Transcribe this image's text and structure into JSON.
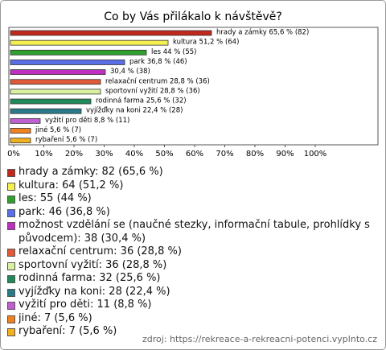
{
  "chart_data": {
    "type": "bar",
    "orientation": "horizontal",
    "title": "Co by Vás přilákalo k návštěvě?",
    "categories": [
      "hrady a zámky",
      "kultura",
      "les",
      "park",
      "možnost vzdělání se (naučné stezky, informační tabule, prohlídky s původcem)",
      "relaxační centrum",
      "sportovní vyžití",
      "rodinná farma",
      "vyjížďky na koni",
      "vyžití pro děti",
      "jiné",
      "rybaření"
    ],
    "values": [
      65.6,
      51.2,
      44,
      36.8,
      30.4,
      28.8,
      28.8,
      25.6,
      22.4,
      8.8,
      5.6,
      5.6
    ],
    "value_labels": [
      "hrady a zámky 65,6 % (82)",
      "kultura 51,2 % (64)",
      "les 44 % (55)",
      "park 36,8 % (46)",
      "30,4 % (38)",
      "relaxační centrum 28,8 % (36)",
      "sportovní vyžití 28,8 % (36)",
      "rodinná farma 25,6 % (32)",
      "vyjížďky na koni 22,4 % (28)",
      "vyžití pro děti 8,8 % (11)",
      "jiné 5,6 % (7)",
      "rybaření 5,6 % (7)"
    ],
    "legend_labels": [
      "hrady a zámky: 82 (65,6 %)",
      "kultura: 64 (51,2 %)",
      "les: 55 (44 %)",
      "park: 46 (36,8 %)",
      "možnost vzdělání se (naučné stezky, informační tabule, prohlídky s původcem): 38 (30,4 %)",
      "relaxační centrum: 36 (28,8 %)",
      "sportovní vyžití: 36 (28,8 %)",
      "rodinná farma: 32 (25,6 %)",
      "vyjížďky na koni: 28 (22,4 %)",
      "vyžití pro děti: 11 (8,8 %)",
      "jiné: 7 (5,6 %)",
      "rybaření: 7 (5,6 %)"
    ],
    "colors": [
      "#c0281c",
      "#f5f050",
      "#2ea02e",
      "#5a6ee6",
      "#c030c0",
      "#e05a3a",
      "#d8f0a0",
      "#208a5a",
      "#2a7a8a",
      "#c060d0",
      "#f08020",
      "#f0b020"
    ],
    "xlim": [
      0,
      100
    ],
    "xticks": [
      {
        "value": 0,
        "label": "0%"
      },
      {
        "value": 10,
        "label": "10%"
      },
      {
        "value": 20,
        "label": "20%"
      },
      {
        "value": 30,
        "label": "30%"
      },
      {
        "value": 40,
        "label": "40%"
      },
      {
        "value": 50,
        "label": "50%"
      },
      {
        "value": 60,
        "label": "60%"
      },
      {
        "value": 70,
        "label": "70%"
      },
      {
        "value": 80,
        "label": "80%"
      },
      {
        "value": 90,
        "label": "90%"
      },
      {
        "value": 100,
        "label": "100%"
      }
    ],
    "source": "zdroj: https://rekreace-a-rekreacni-potenci.vyplnto.cz"
  }
}
